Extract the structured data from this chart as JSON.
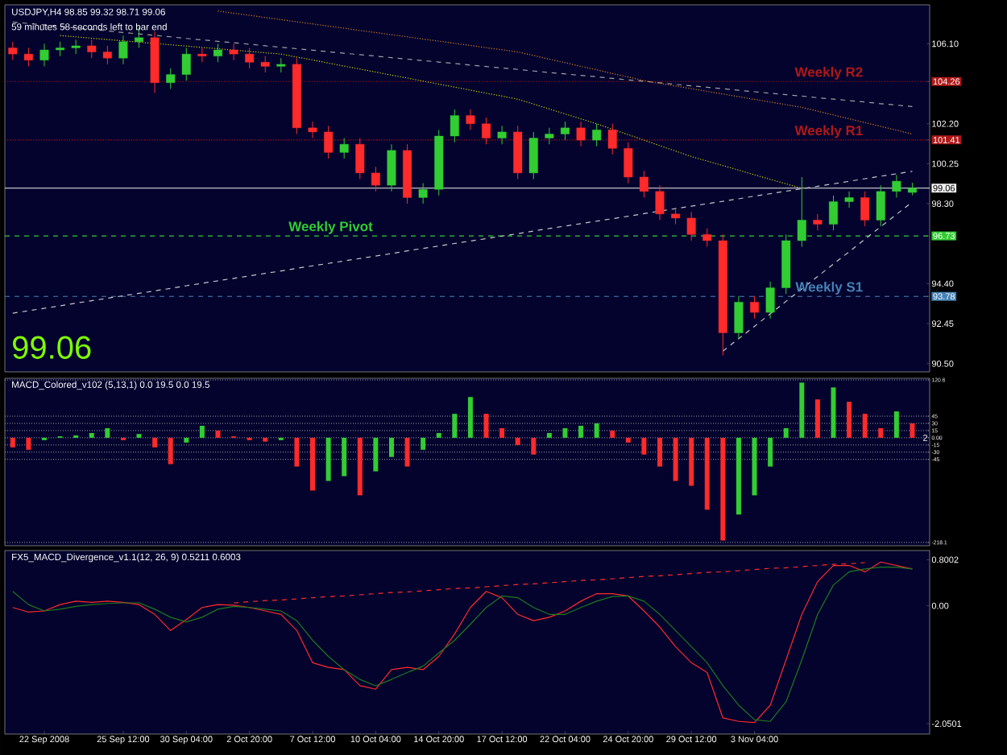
{
  "chart_data": [
    {
      "type": "candlestick",
      "title": "USDJPY,H4  98.85 99.32 98.71 99.06",
      "annotations": [
        "59 minutes 58 seconds left to bar end",
        "99.06"
      ],
      "categories": [
        null,
        null,
        null,
        null,
        null,
        null,
        null,
        null,
        null,
        null,
        null,
        null,
        null,
        null,
        null,
        null,
        null,
        null,
        null,
        null,
        null,
        null,
        null,
        null,
        null,
        null,
        null,
        null,
        null,
        null,
        null,
        null,
        null,
        null,
        null,
        null,
        null,
        null,
        null,
        null,
        null,
        null,
        null,
        null,
        null,
        null,
        null,
        null,
        null,
        null,
        null,
        null,
        null,
        null,
        null,
        null,
        null,
        null
      ],
      "ohlc": [
        [
          105.9,
          106.2,
          105.3,
          105.6
        ],
        [
          105.6,
          105.9,
          105.0,
          105.3
        ],
        [
          105.3,
          106.1,
          105.0,
          105.8
        ],
        [
          105.8,
          106.2,
          105.5,
          105.9
        ],
        [
          105.9,
          106.3,
          105.6,
          106.0
        ],
        [
          106.0,
          106.3,
          105.4,
          105.7
        ],
        [
          105.7,
          106.0,
          105.1,
          105.4
        ],
        [
          105.4,
          106.5,
          105.1,
          106.2
        ],
        [
          106.2,
          106.9,
          105.9,
          106.4
        ],
        [
          106.4,
          106.7,
          103.7,
          104.2
        ],
        [
          104.2,
          104.9,
          103.9,
          104.6
        ],
        [
          104.6,
          105.9,
          104.3,
          105.6
        ],
        [
          105.6,
          105.9,
          105.2,
          105.5
        ],
        [
          105.5,
          106.1,
          105.2,
          105.8
        ],
        [
          105.8,
          106.1,
          105.3,
          105.6
        ],
        [
          105.6,
          105.9,
          104.9,
          105.2
        ],
        [
          105.2,
          105.5,
          104.7,
          105.0
        ],
        [
          105.0,
          105.4,
          104.7,
          105.1
        ],
        [
          105.1,
          105.4,
          101.7,
          102.0
        ],
        [
          102.0,
          102.3,
          101.5,
          101.8
        ],
        [
          101.8,
          102.1,
          100.5,
          100.8
        ],
        [
          100.8,
          101.5,
          100.5,
          101.2
        ],
        [
          101.2,
          101.5,
          99.5,
          99.8
        ],
        [
          99.8,
          100.1,
          98.9,
          99.2
        ],
        [
          99.2,
          101.2,
          98.9,
          100.9
        ],
        [
          100.9,
          101.2,
          98.3,
          98.6
        ],
        [
          98.6,
          99.3,
          98.3,
          99.0
        ],
        [
          99.0,
          101.9,
          98.7,
          101.6
        ],
        [
          101.6,
          102.9,
          101.3,
          102.6
        ],
        [
          102.6,
          102.9,
          101.9,
          102.2
        ],
        [
          102.2,
          102.5,
          101.2,
          101.5
        ],
        [
          101.5,
          102.1,
          101.2,
          101.8
        ],
        [
          101.8,
          102.1,
          99.5,
          99.8
        ],
        [
          99.8,
          101.8,
          99.5,
          101.5
        ],
        [
          101.5,
          102.0,
          101.2,
          101.7
        ],
        [
          101.7,
          102.3,
          101.4,
          102.0
        ],
        [
          102.0,
          102.3,
          101.1,
          101.4
        ],
        [
          101.4,
          102.2,
          101.1,
          101.9
        ],
        [
          101.9,
          102.2,
          100.7,
          101.0
        ],
        [
          101.0,
          101.3,
          99.3,
          99.6
        ],
        [
          99.6,
          99.9,
          98.6,
          98.9
        ],
        [
          98.9,
          99.2,
          97.5,
          97.8
        ],
        [
          97.8,
          98.1,
          97.3,
          97.6
        ],
        [
          97.6,
          97.9,
          96.5,
          96.8
        ],
        [
          96.8,
          97.1,
          96.2,
          96.5
        ],
        [
          96.5,
          96.8,
          90.9,
          92.0
        ],
        [
          92.0,
          93.8,
          91.7,
          93.5
        ],
        [
          93.5,
          93.8,
          92.7,
          93.0
        ],
        [
          93.0,
          94.5,
          92.7,
          94.2
        ],
        [
          94.2,
          96.8,
          93.9,
          96.5
        ],
        [
          96.5,
          99.6,
          96.2,
          97.5
        ],
        [
          97.5,
          97.8,
          97.0,
          97.3
        ],
        [
          97.3,
          98.7,
          97.0,
          98.4
        ],
        [
          98.4,
          98.9,
          98.1,
          98.6
        ],
        [
          98.6,
          98.9,
          97.2,
          97.5
        ],
        [
          97.5,
          99.2,
          97.2,
          98.9
        ],
        [
          98.9,
          99.7,
          98.6,
          99.4
        ],
        [
          98.85,
          99.32,
          98.71,
          99.06
        ]
      ],
      "colors": [
        "#ff2a2a",
        "#ff2a2a",
        "#32cd32",
        "#32cd32",
        "#32cd32",
        "#ff2a2a",
        "#ff2a2a",
        "#32cd32",
        "#32cd32",
        "#ff2a2a",
        "#32cd32",
        "#32cd32",
        "#ff2a2a",
        "#32cd32",
        "#ff2a2a",
        "#ff2a2a",
        "#ff2a2a",
        "#32cd32",
        "#ff2a2a",
        "#ff2a2a",
        "#ff2a2a",
        "#32cd32",
        "#ff2a2a",
        "#ff2a2a",
        "#32cd32",
        "#ff2a2a",
        "#32cd32",
        "#32cd32",
        "#32cd32",
        "#ff2a2a",
        "#ff2a2a",
        "#32cd32",
        "#ff2a2a",
        "#32cd32",
        "#32cd32",
        "#32cd32",
        "#ff2a2a",
        "#32cd32",
        "#ff2a2a",
        "#ff2a2a",
        "#ff2a2a",
        "#ff2a2a",
        "#ff2a2a",
        "#ff2a2a",
        "#ff2a2a",
        "#ff2a2a",
        "#32cd32",
        "#ff2a2a",
        "#32cd32",
        "#32cd32",
        "#32cd32",
        "#ff2a2a",
        "#32cd32",
        "#32cd32",
        "#ff2a2a",
        "#32cd32",
        "#32cd32",
        "#32cd32"
      ],
      "series": [
        {
          "type": "line",
          "color": "#c8c8c8",
          "line_style": "dashed",
          "values": [
            92.96,
            93.08,
            93.2,
            93.32,
            93.45,
            93.57,
            93.69,
            93.81,
            93.93,
            94.05,
            94.17,
            94.3,
            94.42,
            94.54,
            94.66,
            94.78,
            94.9,
            95.02,
            95.15,
            95.27,
            95.39,
            95.51,
            95.63,
            95.75,
            95.87,
            96.0,
            96.12,
            96.24,
            96.36,
            96.48,
            96.6,
            96.72,
            96.84,
            96.97,
            97.09,
            97.21,
            97.33,
            97.45,
            97.57,
            97.69,
            97.82,
            97.94,
            98.06,
            98.18,
            98.3,
            98.42,
            98.54,
            98.67,
            98.79,
            98.91,
            99.03,
            99.15,
            99.27,
            99.39,
            99.52,
            99.64,
            99.76,
            99.88
          ]
        },
        {
          "type": "line",
          "color": "#c8c8c8",
          "line_style": "dashed",
          "values": [
            null,
            null,
            null,
            null,
            null,
            null,
            null,
            null,
            null,
            null,
            null,
            null,
            null,
            null,
            null,
            null,
            null,
            null,
            null,
            null,
            null,
            null,
            null,
            null,
            null,
            null,
            null,
            null,
            null,
            null,
            null,
            null,
            null,
            null,
            null,
            null,
            null,
            null,
            null,
            null,
            null,
            null,
            null,
            null,
            null,
            91.11,
            91.72,
            92.32,
            92.93,
            93.54,
            94.14,
            94.75,
            95.36,
            95.96,
            96.57,
            97.18,
            97.78,
            98.39
          ]
        },
        {
          "type": "line",
          "color": "#a0a0a0",
          "line_style": "dashed",
          "values": [
            107.16,
            107.09,
            107.02,
            106.94,
            106.87,
            106.8,
            106.73,
            106.65,
            106.58,
            106.51,
            106.44,
            106.36,
            106.29,
            106.22,
            106.15,
            106.08,
            106.0,
            105.93,
            105.86,
            105.79,
            105.71,
            105.64,
            105.57,
            105.5,
            105.42,
            105.35,
            105.28,
            105.21,
            105.14,
            105.06,
            104.99,
            104.92,
            104.85,
            104.77,
            104.7,
            104.63,
            104.56,
            104.49,
            104.41,
            104.34,
            104.27,
            104.2,
            104.12,
            104.05,
            103.98,
            103.91,
            103.83,
            103.76,
            103.69,
            103.62,
            103.55,
            103.47,
            103.4,
            103.33,
            103.26,
            103.18,
            103.11,
            103.04
          ]
        },
        {
          "type": "line",
          "color": "#d4d400",
          "line_style": "dotted",
          "values": [
            null,
            null,
            null,
            106.5,
            106.44,
            106.37,
            106.31,
            106.24,
            106.18,
            106.11,
            106.05,
            105.99,
            105.92,
            105.86,
            105.79,
            105.73,
            105.66,
            105.6,
            105.45,
            105.31,
            105.16,
            105.01,
            104.87,
            104.72,
            104.57,
            104.43,
            104.28,
            104.13,
            103.99,
            103.84,
            103.69,
            103.55,
            103.4,
            103.16,
            102.92,
            102.68,
            102.44,
            102.2,
            101.93,
            101.67,
            101.4,
            101.13,
            100.87,
            100.6,
            100.38,
            100.16,
            99.94,
            99.71,
            99.49,
            99.27,
            99.05,
            null,
            null,
            null,
            null,
            null,
            null,
            null
          ]
        },
        {
          "type": "line",
          "color": "#e08020",
          "line_style": "dotted",
          "values": [
            null,
            null,
            null,
            null,
            null,
            null,
            null,
            null,
            null,
            null,
            null,
            null,
            null,
            107.7,
            107.59,
            107.49,
            107.38,
            107.28,
            107.17,
            107.07,
            106.96,
            106.86,
            106.75,
            106.65,
            106.54,
            106.44,
            106.33,
            106.23,
            106.12,
            106.02,
            105.91,
            105.81,
            105.7,
            105.53,
            105.35,
            105.18,
            105.0,
            104.83,
            104.65,
            104.48,
            104.3,
            104.17,
            104.04,
            103.91,
            103.78,
            103.65,
            103.52,
            103.39,
            103.26,
            103.13,
            103.0,
            102.81,
            102.63,
            102.44,
            102.26,
            102.07,
            101.89,
            101.7
          ]
        }
      ],
      "ylim": [
        90.1,
        108.0
      ],
      "yticks": [
        {
          "value": 106.1,
          "label": "106.10"
        },
        104.26,
        {
          "value": 102.2,
          "label": "102.20"
        },
        101.41,
        {
          "value": 100.25,
          "label": "100.25"
        },
        99.06,
        {
          "value": 98.3,
          "label": "98.30"
        },
        96.73,
        {
          "value": 94.4,
          "label": "94.40"
        },
        93.78,
        {
          "value": 92.45,
          "label": "92.45"
        },
        {
          "value": 90.5,
          "label": "90.50"
        }
      ],
      "tick_labels": "y",
      "ref_lines": [
        {
          "axis": "y",
          "value": 104.26,
          "label": "Weekly R2",
          "color": "#b01818",
          "line_style": "dotted"
        },
        {
          "axis": "y",
          "value": 101.41,
          "label": "Weekly R1",
          "color": "#b01818",
          "line_style": "dotted"
        },
        {
          "axis": "y",
          "value": 99.06,
          "color": "#f0f0f0",
          "line_style": "solid"
        },
        {
          "axis": "y",
          "value": 96.73,
          "label": "Weekly Pivot",
          "color": "#32cd32",
          "line_style": "dashed"
        },
        {
          "axis": "y",
          "value": 93.78,
          "label": "Weekly S1",
          "color": "#4682b4",
          "line_style": "dashed"
        }
      ]
    },
    {
      "type": "bar",
      "title": "MACD_Colored_v102 (5,13,1) 0.0 19.5 0.0 19.5",
      "annotations": [
        "2"
      ],
      "categories": [
        null,
        null,
        null,
        null,
        null,
        null,
        null,
        null,
        null,
        null,
        null,
        null,
        null,
        null,
        null,
        null,
        null,
        null,
        null,
        null,
        null,
        null,
        null,
        null,
        null,
        null,
        null,
        null,
        null,
        null,
        null,
        null,
        null,
        null,
        null,
        null,
        null,
        null,
        null,
        null,
        null,
        null,
        null,
        null,
        null,
        null,
        null,
        null,
        null,
        null,
        null,
        null,
        null,
        null,
        null,
        null,
        null,
        null
      ],
      "values": [
        -20,
        -25,
        -5,
        3,
        5,
        10,
        20,
        -5,
        8,
        -20,
        -55,
        -10,
        25,
        15,
        3,
        -5,
        -8,
        -5,
        -60,
        -110,
        -90,
        -80,
        -120,
        -70,
        -40,
        -60,
        -25,
        10,
        50,
        85,
        50,
        20,
        -15,
        -35,
        10,
        20,
        25,
        30,
        15,
        -10,
        -35,
        -60,
        -90,
        -100,
        -150,
        -214,
        -160,
        -120,
        -60,
        20,
        115,
        80,
        105,
        75,
        50,
        20,
        55,
        30
      ],
      "colors": [
        "#ff2a2a",
        "#ff2a2a",
        "#32cd32",
        "#32cd32",
        "#32cd32",
        "#32cd32",
        "#32cd32",
        "#ff2a2a",
        "#32cd32",
        "#ff2a2a",
        "#ff2a2a",
        "#32cd32",
        "#32cd32",
        "#ff2a2a",
        "#ff2a2a",
        "#ff2a2a",
        "#ff2a2a",
        "#32cd32",
        "#ff2a2a",
        "#ff2a2a",
        "#32cd32",
        "#32cd32",
        "#ff2a2a",
        "#32cd32",
        "#32cd32",
        "#ff2a2a",
        "#32cd32",
        "#32cd32",
        "#32cd32",
        "#32cd32",
        "#ff2a2a",
        "#ff2a2a",
        "#ff2a2a",
        "#ff2a2a",
        "#32cd32",
        "#32cd32",
        "#32cd32",
        "#32cd32",
        "#ff2a2a",
        "#ff2a2a",
        "#ff2a2a",
        "#ff2a2a",
        "#ff2a2a",
        "#ff2a2a",
        "#ff2a2a",
        "#ff2a2a",
        "#32cd32",
        "#32cd32",
        "#32cd32",
        "#32cd32",
        "#32cd32",
        "#ff2a2a",
        "#32cd32",
        "#ff2a2a",
        "#ff2a2a",
        "#ff2a2a",
        "#32cd32",
        "#ff2a2a"
      ],
      "ylim": [
        -225,
        124
      ],
      "yticks": [
        120.6,
        45,
        30,
        15,
        {
          "value": 0,
          "label": "0.00"
        },
        -15,
        -30,
        -45,
        -218.1
      ],
      "tick_labels": "y",
      "grid": "y"
    },
    {
      "type": "line",
      "title": "FX5_MACD_Divergence_v1.1(12, 26, 9) 0.5211 0.6003",
      "categories": [
        null,
        null,
        "22 Sep 2008",
        null,
        null,
        null,
        null,
        "25 Sep 12:00",
        null,
        null,
        null,
        "30 Sep 04:00",
        null,
        null,
        null,
        "2 Oct 20:00",
        null,
        null,
        null,
        "7 Oct 12:00",
        null,
        null,
        null,
        "10 Oct 04:00",
        null,
        null,
        null,
        "14 Oct 20:00",
        null,
        null,
        null,
        "17 Oct 12:00",
        null,
        null,
        null,
        "22 Oct 04:00",
        null,
        null,
        null,
        "24 Oct 20:00",
        null,
        null,
        null,
        "29 Oct 12:00",
        null,
        null,
        null,
        "3 Nov 04:00",
        null,
        null,
        null,
        null,
        null,
        null,
        null,
        null,
        null,
        null
      ],
      "series": [
        {
          "color": "#ff2a2a",
          "values": [
            -0.03,
            -0.11,
            -0.09,
            0.02,
            0.08,
            0.06,
            0.08,
            0.06,
            0.02,
            -0.15,
            -0.43,
            -0.24,
            -0.03,
            0.02,
            0.01,
            -0.03,
            -0.09,
            -0.15,
            -0.43,
            -0.99,
            -1.07,
            -1.11,
            -1.39,
            -1.45,
            -1.11,
            -1.07,
            -1.11,
            -0.88,
            -0.49,
            -0.03,
            0.25,
            0.14,
            -0.15,
            -0.26,
            -0.2,
            -0.09,
            0.08,
            0.21,
            0.21,
            0.17,
            -0.09,
            -0.37,
            -0.71,
            -0.99,
            -1.16,
            -1.95,
            -2.01,
            -2.03,
            -1.73,
            -0.94,
            -0.15,
            0.42,
            0.7,
            0.7,
            0.59,
            0.76,
            0.7,
            0.64
          ]
        },
        {
          "color": "#1e7a1e",
          "values": [
            0.25,
            0.02,
            -0.09,
            -0.06,
            -0.01,
            0.02,
            0.04,
            0.05,
            0.05,
            -0.06,
            -0.2,
            -0.28,
            -0.2,
            -0.06,
            -0.01,
            -0.03,
            -0.06,
            -0.09,
            -0.26,
            -0.6,
            -0.88,
            -1.11,
            -1.28,
            -1.39,
            -1.28,
            -1.16,
            -1.05,
            -0.82,
            -0.6,
            -0.32,
            -0.03,
            0.17,
            0.14,
            -0.03,
            -0.15,
            -0.15,
            -0.03,
            0.08,
            0.16,
            0.17,
            0.08,
            -0.15,
            -0.43,
            -0.71,
            -0.99,
            -1.39,
            -1.73,
            -1.98,
            -2.01,
            -1.67,
            -0.94,
            -0.15,
            0.36,
            0.59,
            0.64,
            0.67,
            0.67,
            0.64
          ]
        },
        {
          "color": "#ff2a2a",
          "line_style": "dashed",
          "values": [
            null,
            null,
            null,
            null,
            null,
            null,
            null,
            null,
            null,
            null,
            null,
            null,
            null,
            null,
            0.05,
            0.07,
            0.09,
            0.1,
            0.12,
            0.14,
            0.16,
            0.17,
            0.19,
            0.21,
            0.23,
            0.24,
            0.26,
            0.28,
            0.3,
            0.31,
            0.33,
            0.35,
            0.37,
            0.38,
            0.4,
            0.42,
            0.44,
            0.45,
            0.47,
            0.49,
            0.51,
            0.52,
            0.54,
            0.56,
            0.58,
            0.59,
            0.61,
            0.63,
            0.65,
            0.66,
            0.68,
            0.7,
            0.72,
            0.73,
            0.75,
            null,
            null,
            null
          ]
        }
      ],
      "ylim": [
        -2.23,
        0.96
      ],
      "yticks": [
        0.8002,
        {
          "value": 0,
          "label": "0.00"
        },
        -2.0501
      ]
    }
  ]
}
